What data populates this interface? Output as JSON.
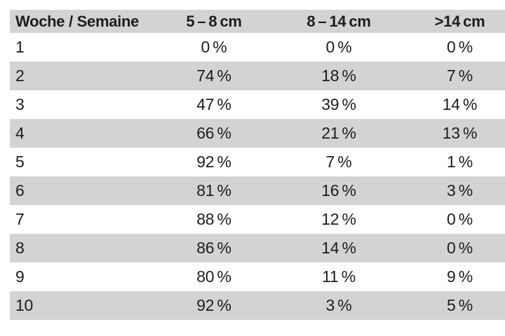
{
  "colors": {
    "header_bg": "#d2d3d5",
    "zebra_bg": "#d2d3d5",
    "row_bg": "#ffffff",
    "text": "#1d1d1b",
    "page_bg": "#ffffff"
  },
  "table": {
    "header": [
      "Woche / Semaine",
      "5 – 8 cm",
      "8 – 14 cm",
      ">14 cm"
    ],
    "rows": [
      [
        "1",
        "0 %",
        "0 %",
        "0 %"
      ],
      [
        "2",
        "74 %",
        "18 %",
        "7 %"
      ],
      [
        "3",
        "47 %",
        "39 %",
        "14 %"
      ],
      [
        "4",
        "66 %",
        "21 %",
        "13 %"
      ],
      [
        "5",
        "92 %",
        "7 %",
        "1 %"
      ],
      [
        "6",
        "81 %",
        "16 %",
        "3 %"
      ],
      [
        "7",
        "88 %",
        "12 %",
        "0 %"
      ],
      [
        "8",
        "86 %",
        "14 %",
        "0 %"
      ],
      [
        "9",
        "80 %",
        "11 %",
        "9 %"
      ],
      [
        "10",
        "92 %",
        "3 %",
        "5 %"
      ]
    ]
  },
  "chart_data": {
    "type": "table",
    "title": "Woche / Semaine",
    "columns": [
      "Woche / Semaine",
      "5–8 cm",
      "8–14 cm",
      ">14 cm"
    ],
    "categories": [
      1,
      2,
      3,
      4,
      5,
      6,
      7,
      8,
      9,
      10
    ],
    "unit": "%",
    "series": [
      {
        "name": "5–8 cm",
        "values": [
          0,
          74,
          47,
          66,
          92,
          81,
          88,
          86,
          80,
          92
        ]
      },
      {
        "name": "8–14 cm",
        "values": [
          0,
          18,
          39,
          21,
          7,
          16,
          12,
          14,
          11,
          3
        ]
      },
      {
        "name": ">14 cm",
        "values": [
          0,
          7,
          14,
          13,
          1,
          3,
          0,
          0,
          9,
          5
        ]
      }
    ],
    "layout": {
      "zebra_striping": true,
      "header_filled": true,
      "first_row_index": 1
    }
  }
}
